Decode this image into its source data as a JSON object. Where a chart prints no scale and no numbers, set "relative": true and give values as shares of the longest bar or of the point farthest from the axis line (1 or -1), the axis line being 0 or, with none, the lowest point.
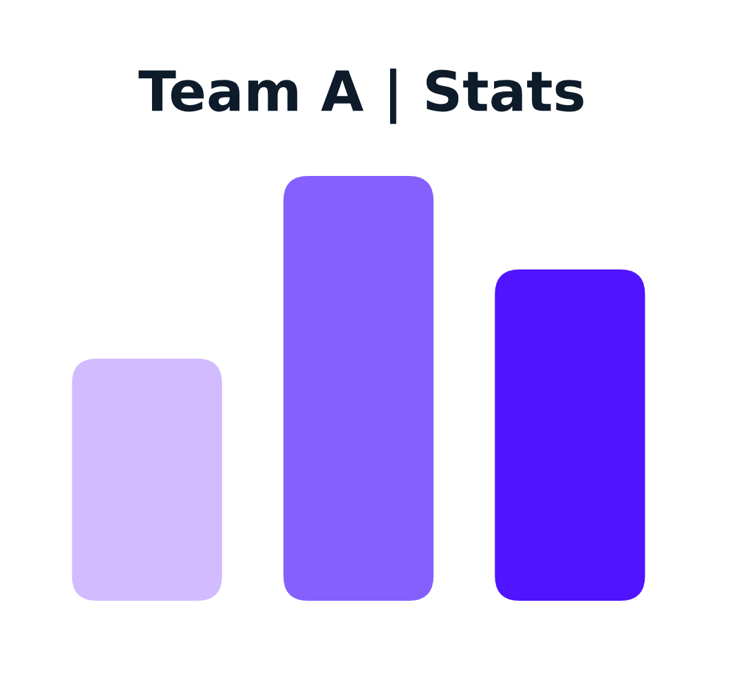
{
  "chart_data": {
    "type": "bar",
    "title": "Team A | Stats",
    "relative": true,
    "categories": [
      null,
      null,
      null
    ],
    "values": [
      0.57,
      1,
      0.78
    ],
    "colors": [
      "#d2bbff",
      "#8460ff",
      "#5014ff"
    ]
  }
}
